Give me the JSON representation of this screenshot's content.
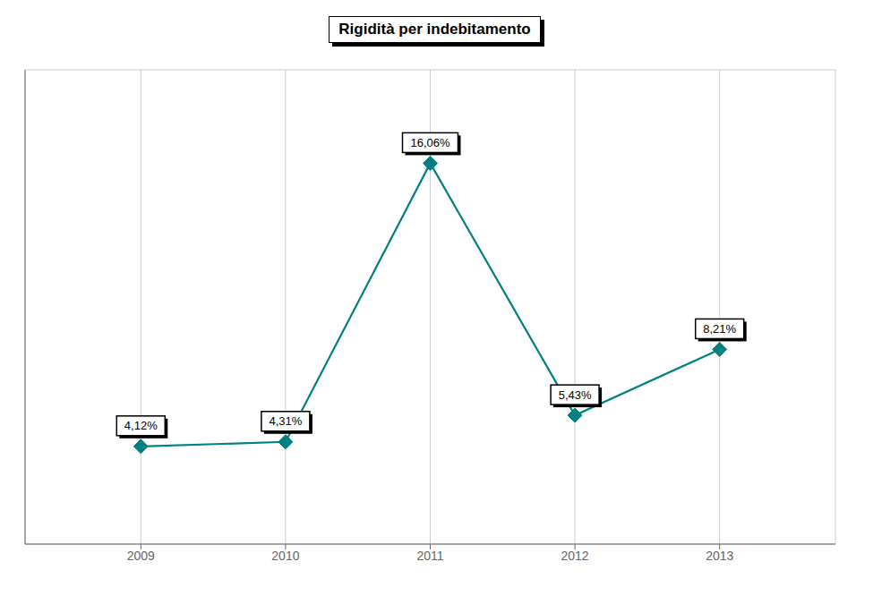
{
  "chart_data": {
    "type": "line",
    "title": "Rigidità per indebitamento",
    "x": [
      2009,
      2010,
      2011,
      2012,
      2013
    ],
    "values": [
      4.12,
      4.31,
      16.06,
      5.43,
      8.21
    ],
    "value_labels": [
      "4,12%",
      "4,31%",
      "16,06%",
      "5,43%",
      "8,21%"
    ],
    "data_labels": true,
    "color": "#008080",
    "marker": "diamond",
    "xlim": [
      2008.2,
      2013.8
    ],
    "xticks": [
      2009,
      2010,
      2011,
      2012,
      2013
    ],
    "ylim": [
      0,
      20
    ],
    "yticks": [
      0,
      4,
      8,
      12,
      16,
      20
    ],
    "grid": true,
    "tick_labels": "x"
  }
}
